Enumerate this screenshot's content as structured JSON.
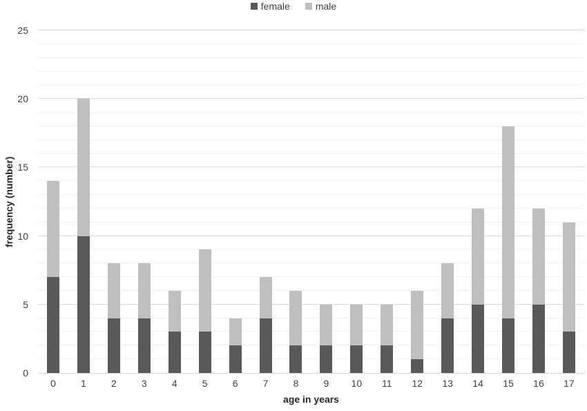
{
  "chart_data": {
    "type": "bar",
    "stacked": true,
    "title": "",
    "categories": [
      "0",
      "1",
      "2",
      "3",
      "4",
      "5",
      "6",
      "7",
      "8",
      "9",
      "10",
      "11",
      "12",
      "13",
      "14",
      "15",
      "16",
      "17"
    ],
    "series": [
      {
        "name": "female",
        "color": "#595959",
        "values": [
          7,
          10,
          4,
          4,
          3,
          3,
          2,
          4,
          2,
          2,
          2,
          2,
          1,
          4,
          5,
          4,
          5,
          3
        ]
      },
      {
        "name": "male",
        "color": "#bfbfbf",
        "values": [
          7,
          10,
          4,
          4,
          3,
          6,
          2,
          3,
          4,
          3,
          3,
          3,
          5,
          4,
          7,
          14,
          7,
          8
        ]
      }
    ],
    "totals": [
      14,
      20,
      8,
      8,
      6,
      9,
      4,
      7,
      6,
      5,
      5,
      5,
      6,
      8,
      12,
      18,
      12,
      11
    ],
    "xlabel": "age in years",
    "ylabel": "frequency (number)",
    "ylim": [
      0,
      25
    ],
    "yticks": [
      0,
      5,
      10,
      15,
      20,
      25
    ],
    "minor_grid_step": 1,
    "major_grid_step": 5,
    "grid": true,
    "legend_position": "top-center",
    "colors": {
      "female": "#595959",
      "male": "#bfbfbf",
      "minor_grid": "#f2f2f2",
      "major_grid": "#d9d9d9",
      "axis_line": "#d9d9d9",
      "tick_text": "#404040",
      "title_text": "#262626",
      "background": "#ffffff"
    }
  }
}
